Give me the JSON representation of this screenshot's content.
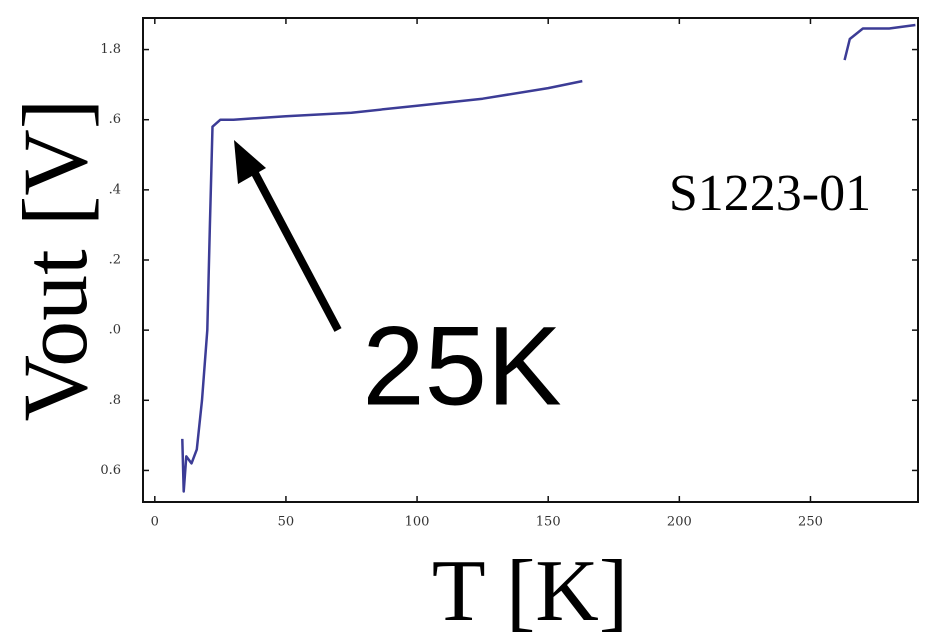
{
  "chart_data": {
    "type": "line",
    "x": [
      10.5,
      11,
      12,
      14,
      16,
      18,
      20,
      21,
      22,
      25,
      30,
      50,
      75,
      100,
      125,
      150,
      163,
      null,
      263,
      265,
      270,
      280,
      290
    ],
    "values": [
      0.69,
      0.54,
      0.64,
      0.62,
      0.66,
      0.8,
      1.0,
      1.3,
      1.58,
      1.6,
      1.6,
      1.61,
      1.62,
      1.64,
      1.66,
      1.69,
      1.71,
      null,
      1.77,
      1.83,
      1.86,
      1.86,
      1.87
    ],
    "color": "#3c3c96",
    "xlim": [
      -4.5,
      291
    ],
    "xticks": [
      0,
      50,
      100,
      150,
      200,
      250
    ],
    "ylim": [
      0.51,
      1.89
    ],
    "yticks": [
      0.6,
      {
        "value": 0.8,
        "label": ".8"
      },
      {
        "value": 1.0,
        "label": ".0"
      },
      {
        "value": 1.2,
        "label": ".2"
      },
      {
        "value": 1.4,
        "label": ".4"
      },
      {
        "value": 1.6,
        "label": ".6"
      },
      1.8
    ],
    "xlabel": "T [K]",
    "ylabel": "Vout [V]",
    "annotations": [
      "S1223-01",
      "25K"
    ]
  }
}
